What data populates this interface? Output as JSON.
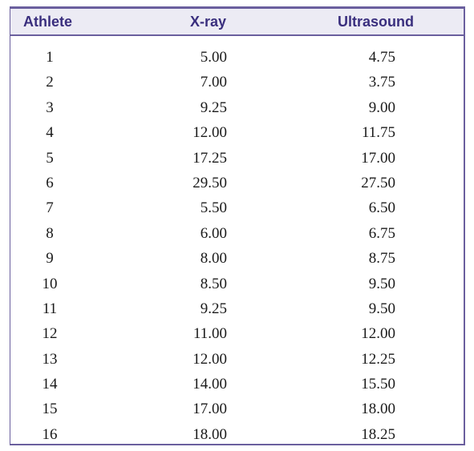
{
  "table": {
    "headers": {
      "athlete": "Athlete",
      "xray": "X-ray",
      "ultrasound": "Ultrasound"
    },
    "rows": [
      {
        "athlete": "1",
        "xray": "5.00",
        "ultrasound": "4.75"
      },
      {
        "athlete": "2",
        "xray": "7.00",
        "ultrasound": "3.75"
      },
      {
        "athlete": "3",
        "xray": "9.25",
        "ultrasound": "9.00"
      },
      {
        "athlete": "4",
        "xray": "12.00",
        "ultrasound": "11.75"
      },
      {
        "athlete": "5",
        "xray": "17.25",
        "ultrasound": "17.00"
      },
      {
        "athlete": "6",
        "xray": "29.50",
        "ultrasound": "27.50"
      },
      {
        "athlete": "7",
        "xray": "5.50",
        "ultrasound": "6.50"
      },
      {
        "athlete": "8",
        "xray": "6.00",
        "ultrasound": "6.75"
      },
      {
        "athlete": "9",
        "xray": "8.00",
        "ultrasound": "8.75"
      },
      {
        "athlete": "10",
        "xray": "8.50",
        "ultrasound": "9.50"
      },
      {
        "athlete": "11",
        "xray": "9.25",
        "ultrasound": "9.50"
      },
      {
        "athlete": "12",
        "xray": "11.00",
        "ultrasound": "12.00"
      },
      {
        "athlete": "13",
        "xray": "12.00",
        "ultrasound": "12.25"
      },
      {
        "athlete": "14",
        "xray": "14.00",
        "ultrasound": "15.50"
      },
      {
        "athlete": "15",
        "xray": "17.00",
        "ultrasound": "18.00"
      },
      {
        "athlete": "16",
        "xray": "18.00",
        "ultrasound": "18.25"
      }
    ]
  },
  "colors": {
    "border": "#6a5f9e",
    "header_background": "#ecebf4",
    "header_text": "#3a2f7e",
    "body_text": "#1a1a1a"
  }
}
